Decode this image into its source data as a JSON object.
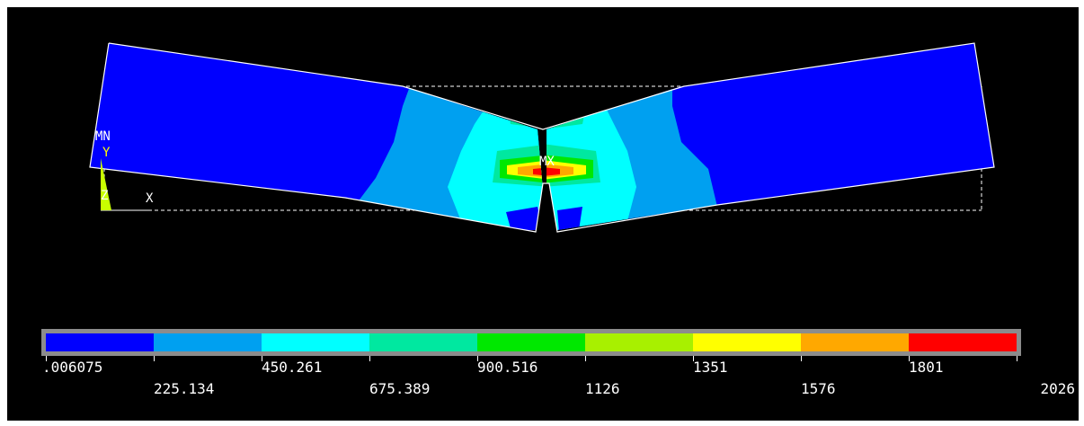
{
  "plot": {
    "min_marker": "MN",
    "max_marker": "MX",
    "axis_y": "Y",
    "axis_z": "Z",
    "axis_x": "X"
  },
  "legend": {
    "labels": [
      ".006075",
      "225.134",
      "450.261",
      "675.389",
      "900.516",
      "1126",
      "1351",
      "1576",
      "1801",
      "2026"
    ],
    "colors": [
      "#0000ff",
      "#00a0f0",
      "#00ffff",
      "#00e8a0",
      "#00e800",
      "#a8f000",
      "#ffff00",
      "#ffa800",
      "#ff0000"
    ]
  },
  "colors": {
    "background": "#000000",
    "outline": "#ffffff",
    "frame": "#ffffff"
  }
}
